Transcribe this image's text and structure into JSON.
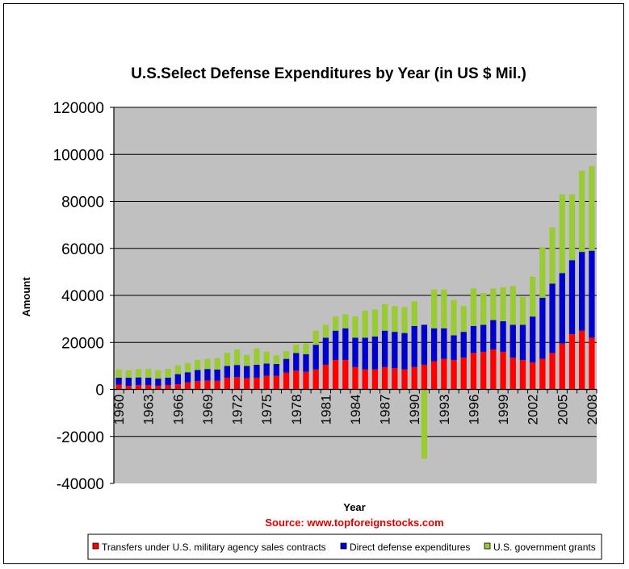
{
  "chart_data": {
    "type": "bar",
    "stacked": true,
    "title": "U.S.Select Defense Expenditures by Year (in US $ Mil.)",
    "xlabel": "Year",
    "ylabel": "Amount",
    "ylim": [
      -40000,
      120000
    ],
    "ytick_step": 20000,
    "yticks": [
      "-40000",
      "-20000",
      "0",
      "20000",
      "40000",
      "60000",
      "80000",
      "100000",
      "120000"
    ],
    "xtick_labels": [
      "1960",
      "1963",
      "1966",
      "1969",
      "1972",
      "1975",
      "1978",
      "1981",
      "1984",
      "1987",
      "1990",
      "1993",
      "1996",
      "1999",
      "2002",
      "2005",
      "2008"
    ],
    "grid": true,
    "background_color": "#c0c0c0",
    "source": "Source: www.topforeignstocks.com",
    "categories": [
      "1960",
      "1961",
      "1962",
      "1963",
      "1964",
      "1965",
      "1966",
      "1967",
      "1968",
      "1969",
      "1970",
      "1971",
      "1972",
      "1973",
      "1974",
      "1975",
      "1976",
      "1977",
      "1978",
      "1979",
      "1980",
      "1981",
      "1982",
      "1983",
      "1984",
      "1985",
      "1986",
      "1987",
      "1988",
      "1989",
      "1990",
      "1991",
      "1992",
      "1993",
      "1994",
      "1995",
      "1996",
      "1997",
      "1998",
      "1999",
      "2000",
      "2001",
      "2002",
      "2003",
      "2004",
      "2005",
      "2006",
      "2007",
      "2008"
    ],
    "series": [
      {
        "name": "Transfers under U.S. military agency sales contracts",
        "color": "#ff0000",
        "values": [
          2000,
          1500,
          1800,
          1800,
          1600,
          1800,
          2200,
          3000,
          3500,
          3800,
          3700,
          5000,
          5200,
          4800,
          5000,
          5800,
          5800,
          7200,
          8000,
          7500,
          8500,
          10500,
          12500,
          12500,
          9500,
          8500,
          8500,
          9500,
          9000,
          8500,
          9500,
          10500,
          12000,
          13000,
          12500,
          13500,
          15500,
          16000,
          17000,
          16000,
          13500,
          12500,
          11500,
          13000,
          15500,
          19500,
          23500,
          25000,
          22000
        ]
      },
      {
        "name": "Direct defense expenditures",
        "color": "#0000cc",
        "values": [
          3000,
          3500,
          3300,
          3200,
          3000,
          3200,
          4300,
          4300,
          4800,
          4900,
          4800,
          5000,
          5200,
          5200,
          5500,
          5200,
          5000,
          5800,
          7500,
          7500,
          10500,
          11500,
          12500,
          13500,
          12500,
          13500,
          14000,
          15500,
          15500,
          15500,
          17500,
          17000,
          14000,
          13000,
          10500,
          11000,
          11500,
          11500,
          12500,
          13000,
          14000,
          15000,
          19500,
          26000,
          29500,
          30000,
          31500,
          33500,
          37000
        ]
      },
      {
        "name": "U.S. government grants",
        "color": "#99cc33",
        "values": [
          3500,
          3200,
          3600,
          3800,
          3600,
          3800,
          3800,
          3900,
          4300,
          4300,
          4800,
          5600,
          6600,
          4700,
          7000,
          5100,
          3700,
          3300,
          3500,
          4500,
          6000,
          5500,
          6000,
          6000,
          9000,
          11500,
          11500,
          11300,
          11000,
          11000,
          10500,
          -29500,
          16500,
          16500,
          15000,
          11000,
          16000,
          13500,
          13500,
          14500,
          16500,
          11800,
          17000,
          21500,
          24000,
          33500,
          28000,
          34500,
          36000
        ]
      }
    ]
  }
}
